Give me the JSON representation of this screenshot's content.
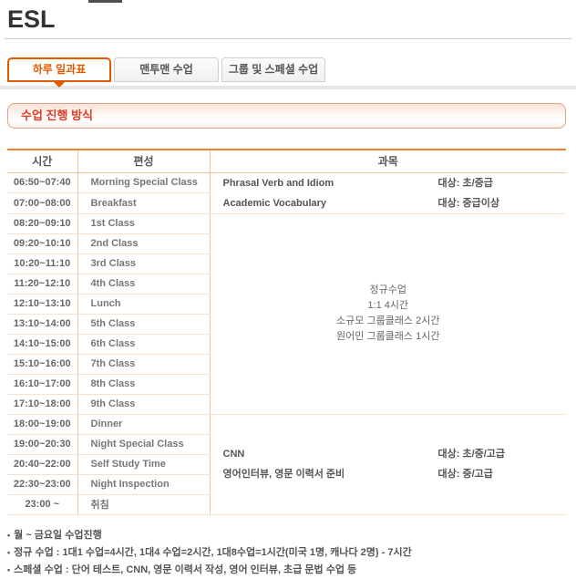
{
  "page": {
    "title": "ESL"
  },
  "tabs": [
    {
      "label": "하루 일과표",
      "active": true
    },
    {
      "label": "맨투맨 수업",
      "active": false
    },
    {
      "label": "그룹 및 스페셜 수업",
      "active": false
    }
  ],
  "section": {
    "title": "수업 진행 방식"
  },
  "table": {
    "headers": [
      "시간",
      "편성",
      "과목"
    ],
    "rows": [
      {
        "time": "06:50~07:40",
        "activity": "Morning Special Class"
      },
      {
        "time": "07:00~08:00",
        "activity": "Breakfast"
      },
      {
        "time": "08:20~09:10",
        "activity": "1st Class"
      },
      {
        "time": "09:20~10:10",
        "activity": "2nd Class"
      },
      {
        "time": "10:20~11:10",
        "activity": "3rd Class"
      },
      {
        "time": "11:20~12:10",
        "activity": "4th Class"
      },
      {
        "time": "12:10~13:10",
        "activity": "Lunch"
      },
      {
        "time": "13:10~14:00",
        "activity": "5th Class"
      },
      {
        "time": "14:10~15:00",
        "activity": "6th Class"
      },
      {
        "time": "15:10~16:00",
        "activity": "7th Class"
      },
      {
        "time": "16:10~17:00",
        "activity": "8th Class"
      },
      {
        "time": "17:10~18:00",
        "activity": "9th Class"
      },
      {
        "time": "18:00~19:00",
        "activity": "Dinner"
      },
      {
        "time": "19:00~20:30",
        "activity": "Night Special Class"
      },
      {
        "time": "20:40~22:00",
        "activity": "Self Study Time"
      },
      {
        "time": "22:30~23:00",
        "activity": "Night Inspection"
      },
      {
        "time": "23:00 ~",
        "activity": "취침"
      }
    ],
    "subject_morning": {
      "lines": [
        {
          "name": "Phrasal Verb and Idiom",
          "target": "대상: 초/중급"
        },
        {
          "name": "Academic Vocabulary",
          "target": "대상: 중급이상"
        }
      ]
    },
    "subject_regular": {
      "lines": [
        "정규수업",
        "1:1 4시간",
        "소규모 그룹클래스 2시간",
        "원어민 그룹클래스 1시간"
      ]
    },
    "subject_night": {
      "lines": [
        {
          "name": "CNN",
          "target": "대상: 초/중/고급"
        },
        {
          "name": "영어인터뷰, 영문 이력서 준비",
          "target": "대상: 중/고급"
        }
      ]
    }
  },
  "notes": [
    "월 ~ 금요일 수업진행",
    "정규 수업 : 1대1 수업=4시간, 1대4 수업=2시간, 1대8수업=1시간(미국 1명, 캐나다 2명) - 7시간",
    "스페셜 수업 : 단어 테스트, CNN, 영문 이력서 작성, 영어 인터뷰, 초급 문법 수업 등"
  ],
  "bullet_char": "•",
  "colors": {
    "accent_orange": "#e05a00",
    "table_top_border": "#f08030",
    "section_title_red": "#e23a28",
    "row_line": "#f9e0cc",
    "section_line": "#f0c5a0",
    "column_divider": "#f4c29c"
  }
}
